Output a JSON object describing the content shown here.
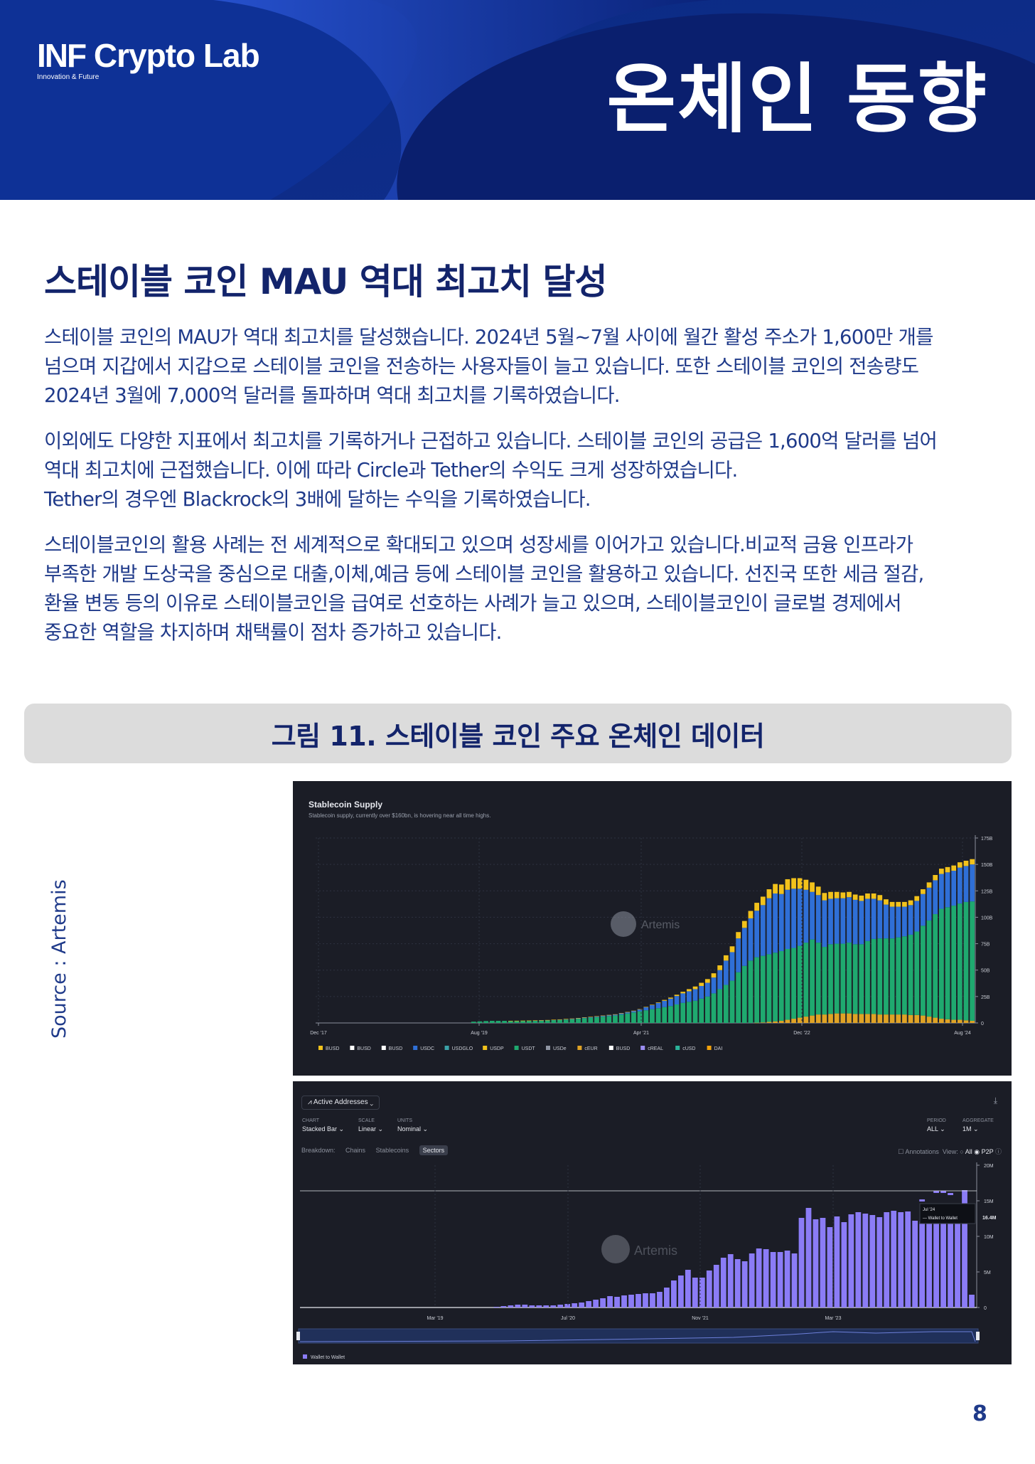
{
  "header": {
    "logo_main_bold": "INF",
    "logo_main_rest": " Crypto Lab",
    "logo_sub": "Innovation & Future",
    "title": "온체인 동향"
  },
  "section": {
    "title": "스테이블 코인 MAU 역대 최고치 달성",
    "p1": [
      "스테이블 코인의 MAU가 역대 최고치를 달성했습니다. 2024년 5월~7월 사이에 월간 활성 주소가 1,600만 개를",
      "넘으며 지갑에서 지갑으로 스테이블 코인을 전송하는 사용자들이 늘고 있습니다. 또한 스테이블 코인의 전송량도",
      "2024년 3월에 7,000억 달러를 돌파하며 역대 최고치를 기록하였습니다."
    ],
    "p2": [
      "이외에도 다양한 지표에서 최고치를 기록하거나 근접하고 있습니다. 스테이블 코인의 공급은 1,600억 달러를 넘어",
      "역대 최고치에 근접했습니다. 이에 따라 Circle과 Tether의 수익도 크게 성장하였습니다.",
      "Tether의 경우엔 Blackrock의 3배에 달하는 수익을 기록하였습니다."
    ],
    "p3": [
      "스테이블코인의 활용 사례는 전 세계적으로 확대되고 있으며 성장세를 이어가고 있습니다.비교적 금융 인프라가",
      "부족한 개발 도상국을 중심으로 대출,이체,예금 등에 스테이블 코인을 활용하고 있습니다. 선진국 또한 세금 절감,",
      "환율 변동 등의 이유로 스테이블코인을 급여로 선호하는 사례가 늘고 있으며,  스테이블코인이 글로벌 경제에서",
      "중요한 역할을 차지하며 채택률이 점차 증가하고 있습니다."
    ]
  },
  "figure": {
    "caption": "그림 11. 스테이블 코인 주요 온체인 데이터",
    "source": "Source : Artemis"
  },
  "page_number": "8",
  "chart_data": [
    {
      "type": "bar",
      "stacked": true,
      "title": "Stablecoin Supply",
      "subtitle": "Stablecoin supply, currently over $160bn, is hovering near all time highs.",
      "watermark": "Artemis",
      "x_tick_labels": [
        "Dec '17",
        "Aug '19",
        "Apr '21",
        "Dec '22",
        "Aug '24"
      ],
      "y_tick_labels": [
        "0",
        "25B",
        "50B",
        "75B",
        "100B",
        "125B",
        "150B",
        "175B"
      ],
      "ylim": [
        0,
        175
      ],
      "legend": [
        "BUSD",
        "BUSD",
        "BUSD",
        "USDC",
        "USDGLO",
        "USDP",
        "USDT",
        "USDe",
        "cEUR",
        "BUSD",
        "cREAL",
        "cUSD",
        "DAI"
      ],
      "legend_colors": [
        "#f2c21b",
        "#ffffff",
        "#ffffff",
        "#2f6fd6",
        "#3ba2a8",
        "#f2c21b",
        "#1fa96f",
        "#8f95a3",
        "#e0a325",
        "#ffffff",
        "#9b8df0",
        "#2bb39a",
        "#f2a20c"
      ],
      "series_colors": {
        "DAI": "#f2c21b",
        "USDC": "#2f6fd6",
        "USDT": "#1fa96f",
        "BUSD": "#e0a325"
      },
      "months": 82,
      "series": [
        {
          "name": "BUSD",
          "values": [
            0,
            0,
            0,
            0,
            0,
            0,
            0,
            0,
            0,
            0,
            0,
            0,
            0,
            0,
            0,
            0,
            0,
            0,
            0,
            0,
            0,
            0,
            0,
            0,
            0,
            0,
            0,
            0,
            0,
            0,
            0,
            0,
            0,
            0,
            0,
            0,
            0,
            0,
            0,
            0,
            0,
            0,
            0,
            0,
            0,
            0,
            0.2,
            0.5,
            1,
            1.5,
            2,
            3,
            4,
            5,
            6,
            7,
            8,
            8,
            8.5,
            9,
            9,
            9,
            8.5,
            8.5,
            8.5,
            8.5,
            8,
            8,
            8,
            8,
            8,
            7.5,
            7.5,
            7,
            6,
            5,
            4,
            3.5,
            3,
            3,
            2.5,
            2
          ]
        },
        {
          "name": "USDT",
          "values": [
            1.2,
            1.5,
            1.8,
            2,
            2,
            2,
            2,
            2,
            2.1,
            2.2,
            2.3,
            2.4,
            2.5,
            2.7,
            2.9,
            3.2,
            3.5,
            4,
            4.5,
            5,
            5.5,
            6,
            6.5,
            7,
            8,
            9,
            10,
            11,
            12,
            13,
            14,
            15,
            16,
            17.5,
            19,
            20,
            21,
            23,
            25,
            28,
            32,
            36,
            40,
            48,
            54,
            59,
            62,
            63,
            64,
            65,
            66,
            67,
            67,
            68,
            70,
            72,
            68,
            64,
            66,
            66,
            66,
            67,
            66,
            66,
            69,
            71,
            72,
            72,
            72,
            73,
            74,
            76,
            79,
            85,
            91,
            98,
            104,
            106,
            108,
            110,
            112,
            113
          ]
        },
        {
          "name": "USDC",
          "values": [
            0,
            0,
            0,
            0,
            0,
            0,
            0,
            0,
            0,
            0,
            0.05,
            0.1,
            0.2,
            0.3,
            0.4,
            0.5,
            0.6,
            0.6,
            0.7,
            0.7,
            0.8,
            0.9,
            1,
            1.1,
            1.2,
            1.3,
            1.5,
            2,
            3,
            4,
            5,
            6,
            7,
            8,
            9,
            10,
            11,
            12,
            13,
            15,
            18,
            23,
            27,
            32,
            36,
            40,
            44,
            48,
            53,
            56,
            54,
            56,
            56,
            54,
            50,
            45,
            45,
            44,
            43,
            43,
            43,
            43,
            42,
            41,
            40,
            38,
            36,
            32,
            30,
            29,
            28,
            28,
            29,
            30,
            31,
            32,
            33,
            33,
            33,
            34,
            34,
            35
          ]
        },
        {
          "name": "DAI",
          "values": [
            0,
            0,
            0,
            0,
            0,
            0,
            0.05,
            0.1,
            0.1,
            0.1,
            0.1,
            0.1,
            0.1,
            0.1,
            0.1,
            0.1,
            0.1,
            0.1,
            0.1,
            0.1,
            0.1,
            0.1,
            0.1,
            0.1,
            0.1,
            0.1,
            0.1,
            0.1,
            0.2,
            0.3,
            0.5,
            0.8,
            1,
            1.2,
            1.5,
            2,
            2.5,
            3,
            3.5,
            4,
            4.5,
            5,
            5.5,
            6,
            6.5,
            7,
            7.5,
            8,
            8.5,
            9,
            9,
            10,
            10,
            10,
            9.5,
            9,
            8,
            7,
            6.5,
            6,
            5.5,
            5,
            5,
            5,
            5,
            5,
            5,
            5,
            4.5,
            4.5,
            4.5,
            4.5,
            4.5,
            4.5,
            5,
            5,
            5,
            5,
            5,
            5,
            5,
            5
          ]
        }
      ]
    },
    {
      "type": "bar",
      "title": "Active Addresses",
      "watermark": "Artemis",
      "controls": [
        {
          "key": "CHART",
          "value": "Stacked Bar ⌄"
        },
        {
          "key": "SCALE",
          "value": "Linear ⌄"
        },
        {
          "key": "UNITS",
          "value": "Nominal ⌄"
        },
        {
          "key": "PERIOD",
          "value": "ALL  ⌄"
        },
        {
          "key": "AGGREGATE",
          "value": "1M  ⌄"
        }
      ],
      "breakdown": {
        "label": "Breakdown:",
        "options": [
          "Chains",
          "Stablecoins",
          "Sectors"
        ],
        "selected": "Sectors"
      },
      "view": {
        "annotations": "Annotations",
        "label": "View:",
        "options": [
          "All",
          "P2P"
        ]
      },
      "x_tick_labels": [
        "Mar '19",
        "Jul '20",
        "Nov '21",
        "Mar '23"
      ],
      "y_tick_labels": [
        "0",
        "5M",
        "10M",
        "15M",
        "20M"
      ],
      "ylim": [
        0,
        20
      ],
      "tooltip": {
        "date": "Jul '24",
        "series": "Wallet to Wallet",
        "value": "16.4M"
      },
      "legend": [
        "Wallet to Wallet"
      ],
      "series": [
        {
          "name": "Wallet to Wallet",
          "color": "#8b7cf6",
          "values": [
            0,
            0,
            0,
            0,
            0,
            0,
            0,
            0,
            0,
            0,
            0,
            0,
            0,
            0,
            0,
            0,
            0,
            0,
            0,
            0,
            0,
            0,
            0,
            0,
            0,
            0,
            0,
            0.1,
            0.2,
            0.3,
            0.4,
            0.4,
            0.3,
            0.3,
            0.3,
            0.3,
            0.4,
            0.5,
            0.6,
            0.7,
            0.9,
            1.1,
            1.3,
            1.6,
            1.5,
            1.7,
            1.8,
            1.9,
            2,
            2,
            2.2,
            2.8,
            3.8,
            4.5,
            5.3,
            4.2,
            4.2,
            5.2,
            6,
            7,
            7.5,
            6.8,
            6.5,
            7.6,
            8.3,
            8.2,
            7.8,
            7.8,
            8,
            7.6,
            12.6,
            14,
            12.4,
            12.6,
            11.3,
            12.8,
            12,
            13.1,
            13.4,
            13.2,
            13,
            12.7,
            13.4,
            13.6,
            13.4,
            13.5,
            12.2,
            12.1,
            12.4,
            12.3,
            12.3,
            12.4,
            12.3,
            16.5,
            1.8
          ]
        }
      ],
      "bars_above_tooltip": [
        0,
        0,
        0,
        0,
        0,
        0,
        0,
        0,
        0,
        0,
        0,
        0,
        0,
        0,
        0,
        0,
        0,
        0,
        0,
        0,
        0,
        0,
        0,
        0,
        0,
        0,
        0,
        0,
        0,
        0,
        0,
        0,
        0,
        0,
        0,
        0,
        0,
        0,
        0,
        0,
        0,
        0,
        0,
        0,
        0,
        0,
        0,
        0,
        0,
        0,
        0,
        0,
        0,
        0,
        0,
        0,
        0,
        0,
        0,
        0,
        0,
        0,
        0,
        0,
        0,
        0,
        0,
        0,
        0,
        0,
        0,
        0,
        0,
        0,
        0,
        0,
        0,
        0,
        0,
        0,
        0,
        0,
        0,
        0,
        0,
        0,
        0,
        15.2,
        0,
        16.4,
        16.4,
        16.1,
        0,
        0
      ]
    }
  ]
}
